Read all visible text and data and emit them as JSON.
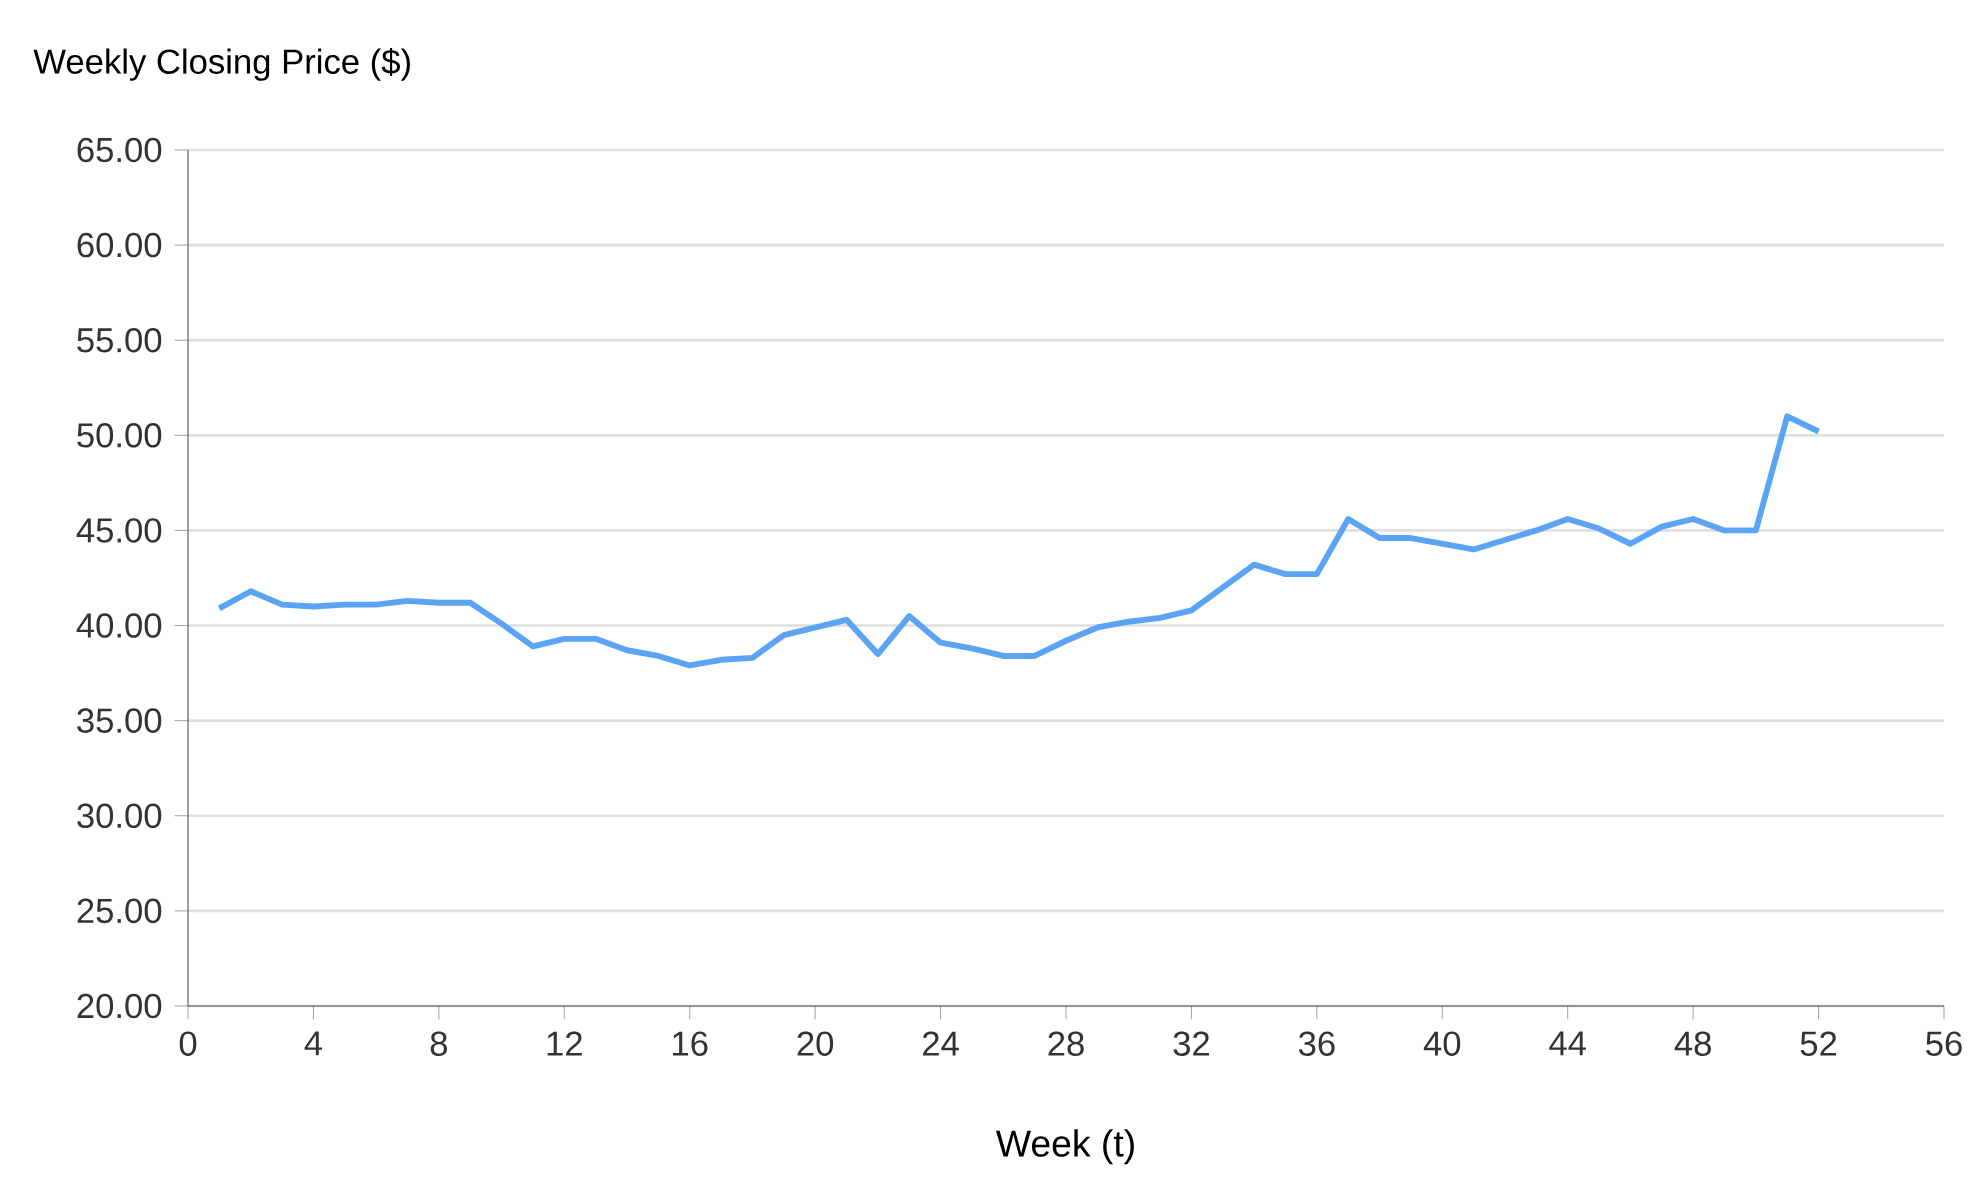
{
  "chart_data": {
    "type": "line",
    "xlabel": "Week (t)",
    "ylabel": "Weekly Closing Price ($)",
    "series": [
      {
        "color": "#5ba3f5",
        "x": [
          1,
          2,
          3,
          4,
          5,
          6,
          7,
          8,
          9,
          10,
          11,
          12,
          13,
          14,
          15,
          16,
          17,
          18,
          19,
          20,
          21,
          22,
          23,
          24,
          25,
          26,
          27,
          28,
          29,
          30,
          31,
          32,
          33,
          34,
          35,
          36,
          37,
          38,
          39,
          40,
          41,
          42,
          43,
          44,
          45,
          46,
          47,
          48,
          49,
          50,
          51,
          52
        ],
        "values": [
          40.9,
          41.8,
          41.1,
          41.0,
          41.1,
          41.1,
          41.3,
          41.2,
          41.2,
          40.1,
          38.9,
          39.3,
          39.3,
          38.7,
          38.4,
          37.9,
          38.2,
          38.3,
          39.5,
          39.9,
          40.3,
          38.5,
          40.5,
          39.1,
          38.8,
          38.4,
          38.4,
          39.2,
          39.9,
          40.2,
          40.4,
          40.8,
          42.0,
          43.2,
          42.7,
          42.7,
          45.6,
          44.6,
          44.6,
          44.3,
          44.0,
          44.5,
          45.0,
          45.6,
          45.1,
          44.3,
          45.2,
          45.6,
          45.0,
          45.0,
          51.0,
          50.2
        ]
      }
    ],
    "xlim": [
      0,
      56
    ],
    "xticks": [
      0,
      4,
      8,
      12,
      16,
      20,
      24,
      28,
      32,
      36,
      40,
      44,
      48,
      52,
      56
    ],
    "ylim": [
      20,
      65
    ],
    "yticks": [
      {
        "value": 20,
        "label": "20.00"
      },
      {
        "value": 25,
        "label": "25.00"
      },
      {
        "value": 30,
        "label": "30.00"
      },
      {
        "value": 35,
        "label": "35.00"
      },
      {
        "value": 40,
        "label": "40.00"
      },
      {
        "value": 45,
        "label": "45.00"
      },
      {
        "value": 50,
        "label": "50.00"
      },
      {
        "value": 55,
        "label": "55.00"
      },
      {
        "value": 60,
        "label": "60.00"
      },
      {
        "value": 65,
        "label": "65.00"
      }
    ],
    "grid": "y",
    "marker": "none",
    "line_style": "solid"
  }
}
